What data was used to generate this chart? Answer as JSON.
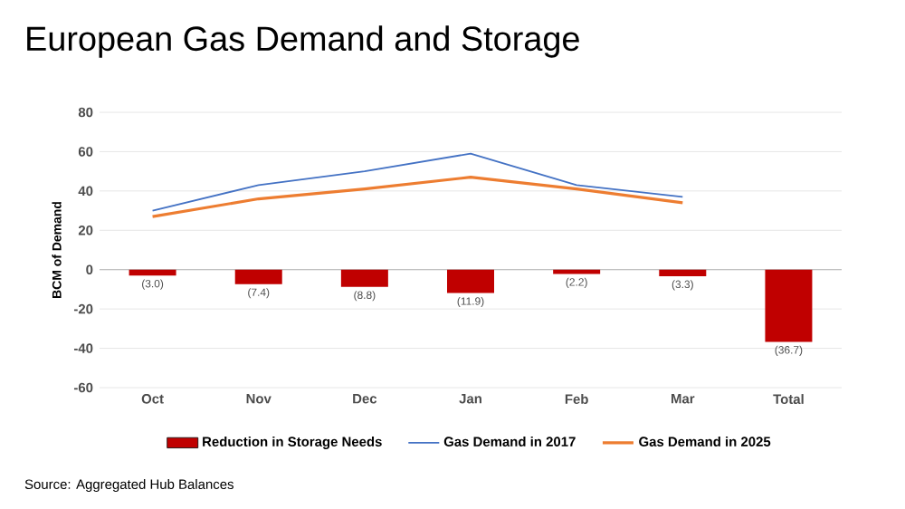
{
  "chart_data": {
    "type": "bar",
    "title": "European Gas Demand and Storage",
    "ylabel": "BCM of Demand",
    "categories": [
      "Oct",
      "Nov",
      "Dec",
      "Jan",
      "Feb",
      "Mar",
      "Total"
    ],
    "series": [
      {
        "name": "Reduction in Storage Needs",
        "color": "#c00000",
        "values": [
          -3.0,
          -7.4,
          -8.8,
          -11.9,
          -2.2,
          -3.3,
          -36.7
        ],
        "value_labels": [
          "(3.0)",
          "(7.4)",
          "(8.8)",
          "(11.9)",
          "(2.2)",
          "(3.3)",
          "(36.7)"
        ]
      },
      {
        "name": "Gas Demand in 2017",
        "type": "line",
        "color": "#4472c4",
        "values": [
          30,
          43,
          50,
          59,
          43,
          37,
          null
        ]
      },
      {
        "name": "Gas Demand in 2025",
        "type": "line",
        "color": "#ed7d31",
        "values": [
          27,
          36,
          41,
          47,
          41,
          34,
          null
        ]
      }
    ],
    "ylim": [
      -60,
      80
    ],
    "yticks": [
      -60,
      -40,
      -20,
      0,
      20,
      40,
      60,
      80
    ],
    "grid": "y",
    "legend": "bottom",
    "annotations": [
      "Source: Aggregated Hub Balances"
    ]
  }
}
